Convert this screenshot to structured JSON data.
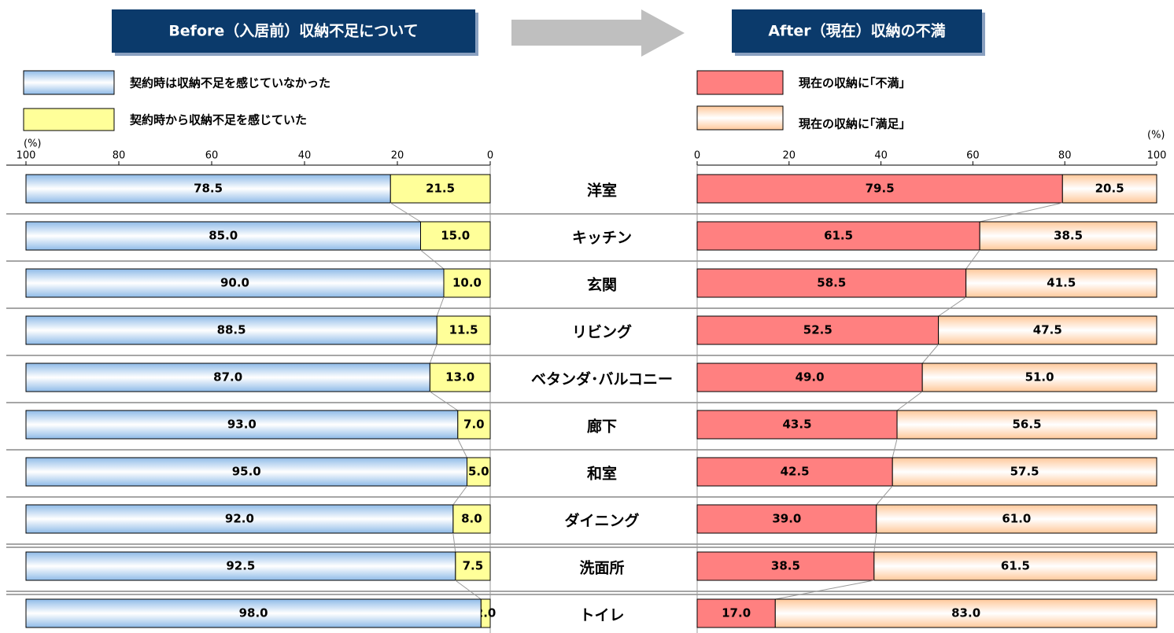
{
  "chart_data": [
    {
      "type": "stacked-bar-horizontal",
      "title": "Before（入居前）収納不足について",
      "unit_label": "(%)",
      "categories": [
        "洋室",
        "キッチン",
        "玄関",
        "リビング",
        "ベタンダ･バルコニー",
        "廊下",
        "和室",
        "ダイニング",
        "洗面所",
        "トイレ"
      ],
      "series": [
        {
          "name": "契約時から収納不足を感じていた",
          "color": "#ffff99",
          "values": [
            21.5,
            15,
            10,
            11.5,
            13,
            7,
            5,
            8,
            7.5,
            2
          ],
          "value_labels": [
            "21.5",
            "15.0",
            "10.0",
            "11.5",
            "13.0",
            "7.0",
            "5.0",
            "8.0",
            "7.5",
            "2.0"
          ]
        },
        {
          "name": "契約時は収納不足を感じていなかった",
          "color": "#a8cbf0",
          "values": [
            78.5,
            85,
            90,
            88.5,
            87,
            93,
            95,
            92,
            92.5,
            98
          ],
          "value_labels": [
            "78.5",
            "85.0",
            "90.0",
            "88.5",
            "87.0",
            "93.0",
            "95.0",
            "92.0",
            "92.5",
            "98.0"
          ]
        }
      ],
      "xlim": [
        100,
        0
      ],
      "xticks": [
        100,
        80,
        60,
        40,
        20,
        0
      ]
    },
    {
      "type": "stacked-bar-horizontal",
      "title": "After（現在）収納の不満",
      "unit_label": "(%)",
      "series": [
        {
          "name": "現在の収納に｢不満｣",
          "color": "#ff8080",
          "values": [
            79.5,
            61.5,
            58.5,
            52.5,
            49,
            43.5,
            42.5,
            39,
            38.5,
            17
          ],
          "value_labels": [
            "79.5",
            "61.5",
            "58.5",
            "52.5",
            "49.0",
            "43.5",
            "42.5",
            "39.0",
            "38.5",
            "17.0"
          ]
        },
        {
          "name": "現在の収納に｢満足｣",
          "color": "#ffcc99",
          "values": [
            20.5,
            38.5,
            41.5,
            47.5,
            51,
            56.5,
            57.5,
            61,
            61.5,
            83
          ],
          "value_labels": [
            "20.5",
            "38.5",
            "41.5",
            "47.5",
            "51.0",
            "56.5",
            "57.5",
            "61.0",
            "61.5",
            "83.0"
          ]
        }
      ],
      "xlim": [
        0,
        100
      ],
      "xticks": [
        0,
        20,
        40,
        60,
        80,
        100
      ]
    }
  ]
}
